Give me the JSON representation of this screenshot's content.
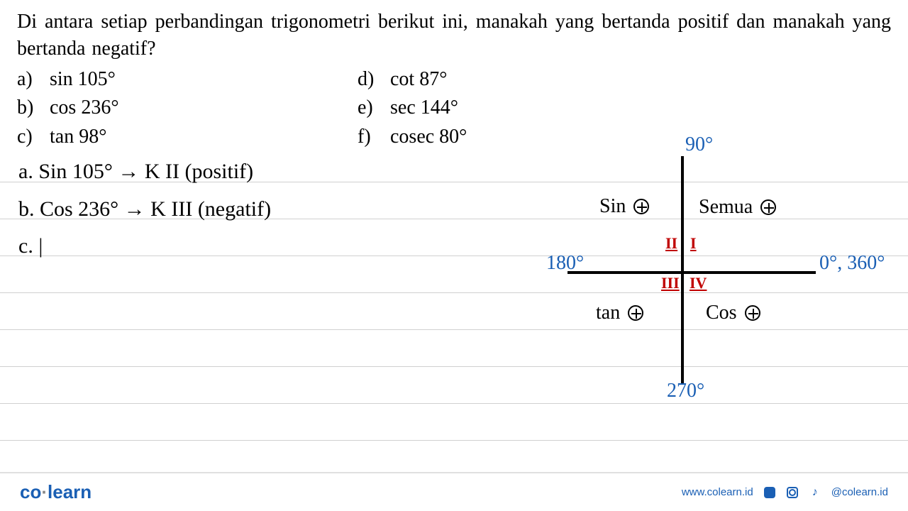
{
  "question": {
    "text": "Di antara setiap perbandingan trigonometri berikut ini, manakah yang bertanda positif dan manakah yang bertanda negatif?",
    "options_left": [
      {
        "label": "a)",
        "value": "sin 105°"
      },
      {
        "label": "b)",
        "value": "cos 236°"
      },
      {
        "label": "c)",
        "value": "tan 98°"
      }
    ],
    "options_right": [
      {
        "label": "d)",
        "value": "cot 87°"
      },
      {
        "label": "e)",
        "value": "sec 144°"
      },
      {
        "label": "f)",
        "value": "cosec 80°"
      }
    ]
  },
  "handwritten": {
    "a": "a. Sin 105° → K II (positif)",
    "b": "b. Cos 236° → K III (negatif)",
    "c": "c. |"
  },
  "diagram": {
    "angles": {
      "top": "90°",
      "left": "180°",
      "right": "0°, 360°",
      "bottom": "270°"
    },
    "quadrants": {
      "q1": {
        "roman": "I",
        "label": "Semua"
      },
      "q2": {
        "roman": "II",
        "label": "Sin"
      },
      "q3": {
        "roman": "III",
        "label": "tan"
      },
      "q4": {
        "roman": "IV",
        "label": "Cos"
      }
    },
    "colors": {
      "axis": "#000000",
      "angle_label": "#1a5fb4",
      "quadrant_roman": "#c00000",
      "text": "#000000"
    }
  },
  "footer": {
    "logo_pre": "co",
    "logo_dot": "·",
    "logo_post": "learn",
    "url": "www.colearn.id",
    "handle": "@colearn.id"
  }
}
